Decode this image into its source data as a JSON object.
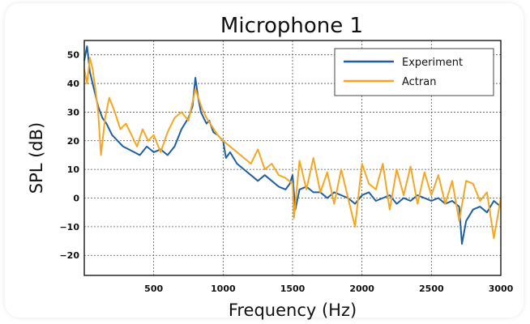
{
  "chart_data": {
    "type": "line",
    "title": "Microphone 1",
    "xlabel": "Frequency (Hz)",
    "ylabel": "SPL (dB)",
    "xlim": [
      0,
      3000
    ],
    "ylim": [
      -27,
      55
    ],
    "xticks": [
      500,
      1000,
      1500,
      2000,
      2500,
      3000
    ],
    "yticks": [
      -20,
      -10,
      0,
      10,
      20,
      30,
      40,
      50
    ],
    "grid": true,
    "legend_position": "top-right",
    "series": [
      {
        "name": "Experiment",
        "color": "#1f5fa0",
        "x": [
          0,
          20,
          40,
          60,
          80,
          100,
          130,
          160,
          200,
          240,
          280,
          320,
          360,
          400,
          450,
          500,
          550,
          600,
          650,
          700,
          750,
          780,
          800,
          820,
          840,
          860,
          880,
          900,
          930,
          960,
          1000,
          1020,
          1050,
          1100,
          1150,
          1200,
          1250,
          1300,
          1350,
          1400,
          1450,
          1480,
          1500,
          1520,
          1550,
          1600,
          1650,
          1700,
          1750,
          1800,
          1850,
          1900,
          1950,
          2000,
          2050,
          2100,
          2150,
          2200,
          2250,
          2300,
          2350,
          2400,
          2450,
          2500,
          2550,
          2600,
          2650,
          2700,
          2720,
          2750,
          2800,
          2850,
          2900,
          2950,
          3000
        ],
        "y": [
          48,
          53,
          44,
          40,
          36,
          32,
          28,
          26,
          22,
          20,
          18,
          17,
          16,
          15,
          18,
          16,
          17,
          15,
          18,
          24,
          28,
          32,
          42,
          35,
          30,
          28,
          26,
          27,
          23,
          22,
          20,
          14,
          16,
          12,
          10,
          8,
          6,
          8,
          6,
          4,
          3,
          5,
          8,
          -4,
          3,
          4,
          2,
          2,
          0,
          2,
          1,
          0,
          -2,
          1,
          2,
          -1,
          0,
          1,
          -2,
          0,
          -1,
          1,
          0,
          -1,
          0,
          -2,
          -1,
          -3,
          -16,
          -8,
          -4,
          -3,
          -5,
          -1,
          -3
        ]
      },
      {
        "name": "Actran",
        "color": "#f5a623",
        "x": [
          0,
          20,
          40,
          60,
          80,
          100,
          120,
          150,
          180,
          220,
          260,
          300,
          340,
          380,
          420,
          460,
          500,
          550,
          600,
          650,
          700,
          750,
          800,
          850,
          880,
          920,
          960,
          1000,
          1050,
          1100,
          1150,
          1200,
          1250,
          1300,
          1350,
          1400,
          1450,
          1500,
          1510,
          1550,
          1600,
          1650,
          1700,
          1750,
          1800,
          1850,
          1900,
          1950,
          2000,
          2050,
          2100,
          2150,
          2200,
          2250,
          2300,
          2350,
          2400,
          2450,
          2500,
          2550,
          2600,
          2650,
          2700,
          2750,
          2800,
          2850,
          2900,
          2950,
          3000
        ],
        "y": [
          45,
          40,
          49,
          45,
          38,
          30,
          15,
          28,
          35,
          30,
          24,
          26,
          22,
          18,
          24,
          20,
          22,
          16,
          23,
          28,
          30,
          27,
          38,
          31,
          28,
          25,
          22,
          20,
          18,
          16,
          14,
          12,
          17,
          10,
          12,
          8,
          7,
          5,
          -7,
          13,
          3,
          14,
          2,
          9,
          -2,
          10,
          0,
          -10,
          12,
          5,
          3,
          12,
          -4,
          10,
          1,
          11,
          -2,
          9,
          1,
          8,
          -2,
          6,
          -8,
          6,
          5,
          -1,
          2,
          -14,
          0
        ]
      }
    ]
  }
}
